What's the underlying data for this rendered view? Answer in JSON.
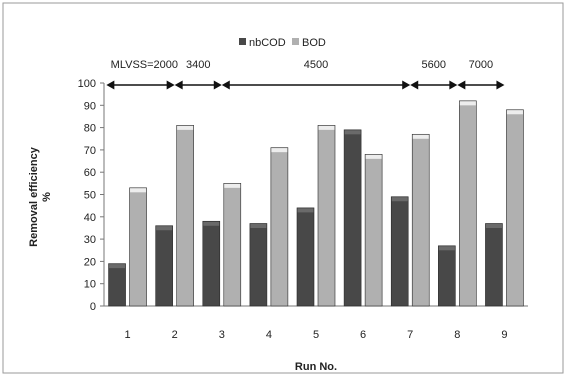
{
  "chart_data": {
    "type": "bar",
    "categories": [
      "1",
      "2",
      "3",
      "4",
      "5",
      "6",
      "7",
      "8",
      "9"
    ],
    "series": [
      {
        "name": "nbCOD",
        "values": [
          19,
          36,
          38,
          37,
          44,
          79,
          49,
          27,
          37
        ],
        "color": "#484848"
      },
      {
        "name": "BOD",
        "values": [
          53,
          81,
          55,
          71,
          81,
          68,
          77,
          92,
          88
        ],
        "color": "#b0b0b0"
      }
    ],
    "title": "",
    "xlabel": "Run No.",
    "ylabel_line1": "Removal efficiency",
    "ylabel_line2": "%",
    "ylim": [
      0,
      100
    ],
    "yticks": [
      0,
      10,
      20,
      30,
      40,
      50,
      60,
      70,
      80,
      90,
      100
    ],
    "grid": false,
    "legend_position": "top-center",
    "annotations": [
      {
        "label": "MLVSS=2000",
        "from_category": "1",
        "to_category": "2"
      },
      {
        "label": "3400",
        "from_category": "2",
        "to_category": "3"
      },
      {
        "label": "4500",
        "from_category": "3",
        "to_category": "7"
      },
      {
        "label": "5600",
        "from_category": "7",
        "to_category": "8"
      },
      {
        "label": "7000",
        "from_category": "8",
        "to_category": "9"
      }
    ]
  }
}
